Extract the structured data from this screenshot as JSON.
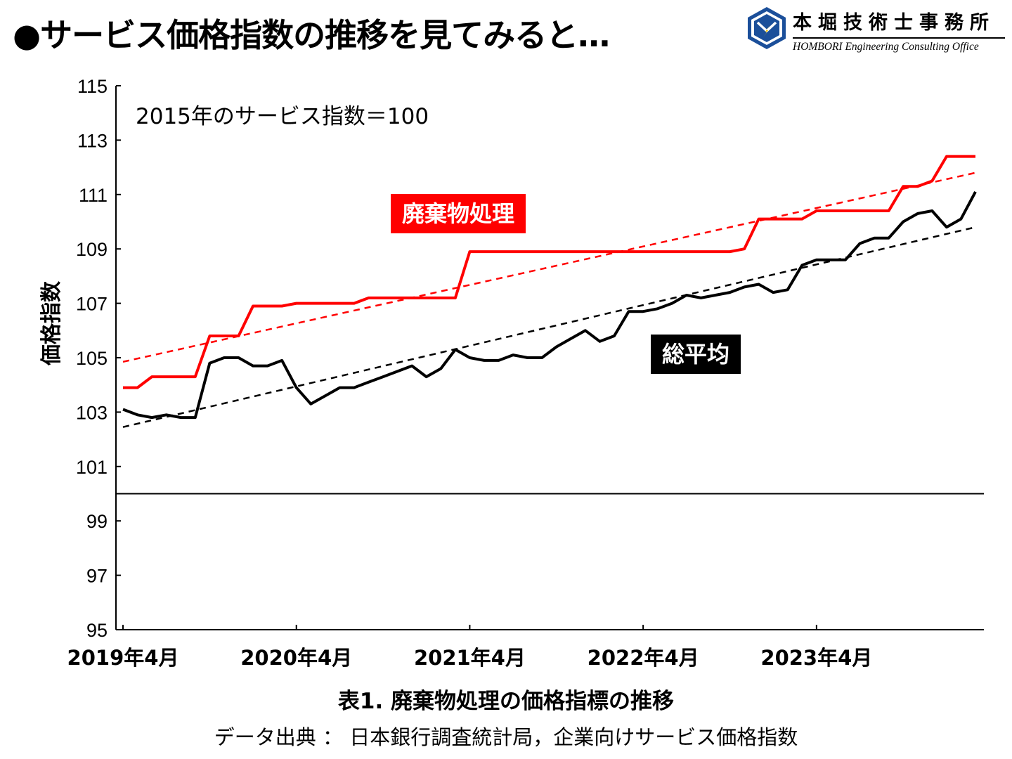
{
  "page": {
    "title": "●サービス価格指数の推移を見てみると…"
  },
  "logo": {
    "name_jp": "本堀技術士事務所",
    "name_en": "HOMBORI Engineering Consulting Office",
    "colors": {
      "primary": "#1b4f9a",
      "accent": "#f2c200"
    }
  },
  "chart_data": {
    "type": "line",
    "subtitle": "2015年のサービス指数＝100",
    "ylabel": "価格指数",
    "caption": "表1. 廃棄物処理の価格指標の推移",
    "source": "データ出典 ： 日本銀行調査統計局，企業向けサービス価格指数",
    "ylim": [
      95,
      115
    ],
    "yticks": [
      95,
      97,
      99,
      101,
      103,
      105,
      107,
      109,
      111,
      113,
      115
    ],
    "xlim": [
      "2019-04",
      "2024-03"
    ],
    "xticks": [
      {
        "date": "2019-04",
        "label": "2019年4月"
      },
      {
        "date": "2020-04",
        "label": "2020年4月"
      },
      {
        "date": "2021-04",
        "label": "2021年4月"
      },
      {
        "date": "2022-04",
        "label": "2022年4月"
      },
      {
        "date": "2023-04",
        "label": "2023年4月"
      }
    ],
    "reference_line": {
      "y": 100,
      "color": "#000000"
    },
    "grid": false,
    "x": [
      "2019-04",
      "2019-05",
      "2019-06",
      "2019-07",
      "2019-08",
      "2019-09",
      "2019-10",
      "2019-11",
      "2019-12",
      "2020-01",
      "2020-02",
      "2020-03",
      "2020-04",
      "2020-05",
      "2020-06",
      "2020-07",
      "2020-08",
      "2020-09",
      "2020-10",
      "2020-11",
      "2020-12",
      "2021-01",
      "2021-02",
      "2021-03",
      "2021-04",
      "2021-05",
      "2021-06",
      "2021-07",
      "2021-08",
      "2021-09",
      "2021-10",
      "2021-11",
      "2021-12",
      "2022-01",
      "2022-02",
      "2022-03",
      "2022-04",
      "2022-05",
      "2022-06",
      "2022-07",
      "2022-08",
      "2022-09",
      "2022-10",
      "2022-11",
      "2022-12",
      "2023-01",
      "2023-02",
      "2023-03",
      "2023-04",
      "2023-05",
      "2023-06",
      "2023-07",
      "2023-08",
      "2023-09",
      "2023-10",
      "2023-11",
      "2023-12",
      "2024-01",
      "2024-02",
      "2024-03"
    ],
    "series": [
      {
        "name": "廃棄物処理",
        "color": "#ff0000",
        "label_bg": "#ff0000",
        "values": [
          103.9,
          103.9,
          104.3,
          104.3,
          104.3,
          104.3,
          105.8,
          105.8,
          105.8,
          106.9,
          106.9,
          106.9,
          107.0,
          107.0,
          107.0,
          107.0,
          107.0,
          107.2,
          107.2,
          107.2,
          107.2,
          107.2,
          107.2,
          107.2,
          108.9,
          108.9,
          108.9,
          108.9,
          108.9,
          108.9,
          108.9,
          108.9,
          108.9,
          108.9,
          108.9,
          108.9,
          108.9,
          108.9,
          108.9,
          108.9,
          108.9,
          108.9,
          108.9,
          109.0,
          110.1,
          110.1,
          110.1,
          110.1,
          110.4,
          110.4,
          110.4,
          110.4,
          110.4,
          110.4,
          111.3,
          111.3,
          111.5,
          112.4,
          112.4,
          112.4
        ],
        "trend": {
          "start": 104.85,
          "end": 111.8,
          "style": "dashed"
        }
      },
      {
        "name": "総平均",
        "color": "#000000",
        "label_bg": "#000000",
        "values": [
          103.1,
          102.9,
          102.8,
          102.9,
          102.8,
          102.8,
          104.8,
          105.0,
          105.0,
          104.7,
          104.7,
          104.9,
          103.9,
          103.3,
          103.6,
          103.9,
          103.9,
          104.1,
          104.3,
          104.5,
          104.7,
          104.3,
          104.6,
          105.3,
          105.0,
          104.9,
          104.9,
          105.1,
          105.0,
          105.0,
          105.4,
          105.7,
          106.0,
          105.6,
          105.8,
          106.7,
          106.7,
          106.8,
          107.0,
          107.3,
          107.2,
          107.3,
          107.4,
          107.6,
          107.7,
          107.4,
          107.5,
          108.4,
          108.6,
          108.6,
          108.6,
          109.2,
          109.4,
          109.4,
          110.0,
          110.3,
          110.4,
          109.8,
          110.1,
          111.1
        ],
        "trend": {
          "start": 102.45,
          "end": 109.8,
          "style": "dashed"
        }
      }
    ]
  }
}
